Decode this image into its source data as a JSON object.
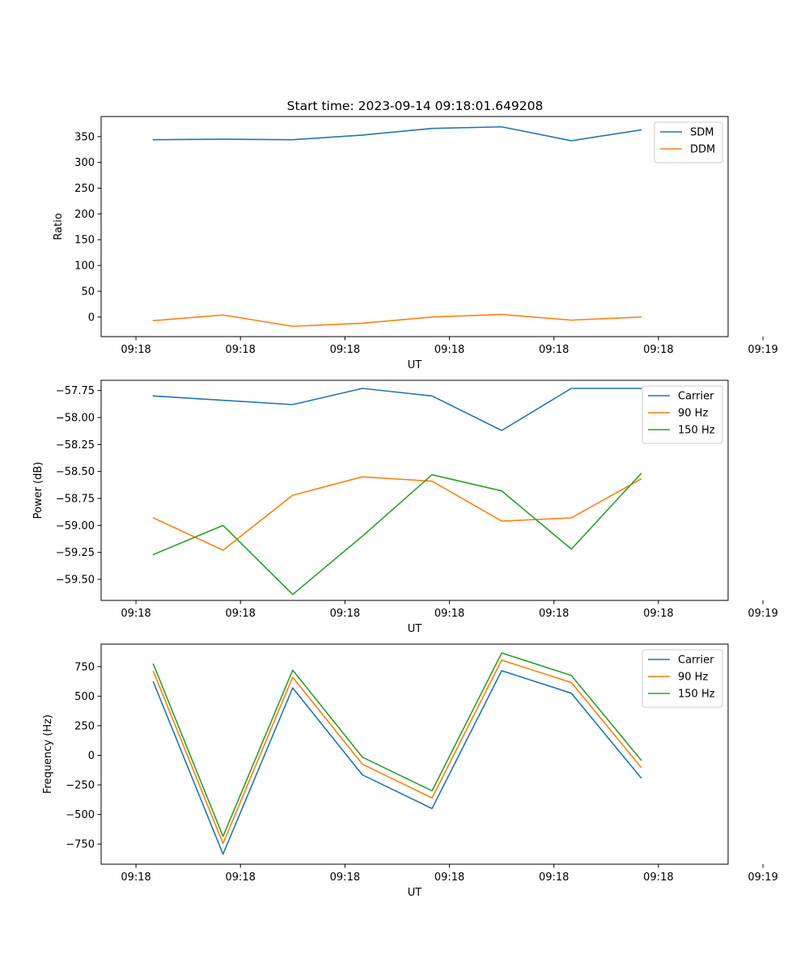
{
  "figure": {
    "title": "Start time: 2023-09-14 09:18:01.649208"
  },
  "colors": {
    "blue": "#1f77b4",
    "orange": "#ff7f0e",
    "green": "#2ca02c"
  },
  "chart_data": [
    {
      "type": "line",
      "title": "Start time: 2023-09-14 09:18:01.649208",
      "xlabel": "UT",
      "ylabel": "Ratio",
      "xlim": [
        -0.5,
        8.5
      ],
      "ylim": [
        -38,
        389
      ],
      "x": [
        0.25,
        1.25,
        2.25,
        3.25,
        4.25,
        5.25,
        6.25,
        7.25
      ],
      "xticks": [
        0,
        1.5,
        3,
        4.5,
        6,
        7.5,
        9
      ],
      "xtick_labels": [
        "09:18",
        "09:18",
        "09:18",
        "09:18",
        "09:18",
        "09:18",
        "09:19"
      ],
      "yticks": [
        0,
        50,
        100,
        150,
        200,
        250,
        300,
        350
      ],
      "ytick_labels": [
        "0",
        "50",
        "100",
        "150",
        "200",
        "250",
        "300",
        "350"
      ],
      "legend_loc": "upper right",
      "series": [
        {
          "name": "SDM",
          "color": "blue",
          "values": [
            344,
            345,
            344,
            353,
            366,
            369,
            342,
            363
          ]
        },
        {
          "name": "DDM",
          "color": "orange",
          "values": [
            -7,
            4,
            -18,
            -12,
            0,
            5,
            -6,
            0
          ]
        }
      ]
    },
    {
      "type": "line",
      "title": "",
      "xlabel": "UT",
      "ylabel": "Power (dB)",
      "xlim": [
        -0.5,
        8.5
      ],
      "ylim": [
        -59.695,
        -57.655
      ],
      "x": [
        0.25,
        1.25,
        2.25,
        3.25,
        4.25,
        5.25,
        6.25,
        7.25
      ],
      "xticks": [
        0,
        1.5,
        3,
        4.5,
        6,
        7.5,
        9
      ],
      "xtick_labels": [
        "09:18",
        "09:18",
        "09:18",
        "09:18",
        "09:18",
        "09:18",
        "09:19"
      ],
      "yticks": [
        -59.5,
        -59.25,
        -59,
        -58.75,
        -58.5,
        -58.25,
        -58,
        -57.75
      ],
      "ytick_labels": [
        "−59.50",
        "−59.25",
        "−59.00",
        "−58.75",
        "−58.50",
        "−58.25",
        "−58.00",
        "−57.75"
      ],
      "legend_loc": "upper right",
      "series": [
        {
          "name": "Carrier",
          "color": "blue",
          "values": [
            -57.8,
            -57.84,
            -57.88,
            -57.73,
            -57.8,
            -58.12,
            -57.73,
            -57.73
          ]
        },
        {
          "name": "90 Hz",
          "color": "orange",
          "values": [
            -58.93,
            -59.23,
            -58.72,
            -58.55,
            -58.59,
            -58.96,
            -58.93,
            -58.57
          ]
        },
        {
          "name": "150 Hz",
          "color": "green",
          "values": [
            -59.27,
            -59.0,
            -59.64,
            -59.1,
            -58.53,
            -58.68,
            -59.22,
            -58.52
          ]
        }
      ]
    },
    {
      "type": "line",
      "title": "",
      "xlabel": "UT",
      "ylabel": "Frequency (Hz)",
      "xlim": [
        -0.5,
        8.5
      ],
      "ylim": [
        -920,
        940
      ],
      "x": [
        0.25,
        1.25,
        2.25,
        3.25,
        4.25,
        5.25,
        6.25,
        7.25
      ],
      "xticks": [
        0,
        1.5,
        3,
        4.5,
        6,
        7.5,
        9
      ],
      "xtick_labels": [
        "09:18",
        "09:18",
        "09:18",
        "09:18",
        "09:18",
        "09:18",
        "09:19"
      ],
      "yticks": [
        -750,
        -500,
        -250,
        0,
        250,
        500,
        750
      ],
      "ytick_labels": [
        "−750",
        "−500",
        "−250",
        "0",
        "250",
        "500",
        "750"
      ],
      "legend_loc": "upper right",
      "series": [
        {
          "name": "Carrier",
          "color": "blue",
          "values": [
            620,
            -835,
            570,
            -165,
            -450,
            715,
            525,
            -190
          ]
        },
        {
          "name": "90 Hz",
          "color": "orange",
          "values": [
            710,
            -745,
            660,
            -75,
            -360,
            805,
            615,
            -100
          ]
        },
        {
          "name": "150 Hz",
          "color": "green",
          "values": [
            770,
            -685,
            720,
            -15,
            -300,
            865,
            675,
            -40
          ]
        }
      ]
    }
  ]
}
